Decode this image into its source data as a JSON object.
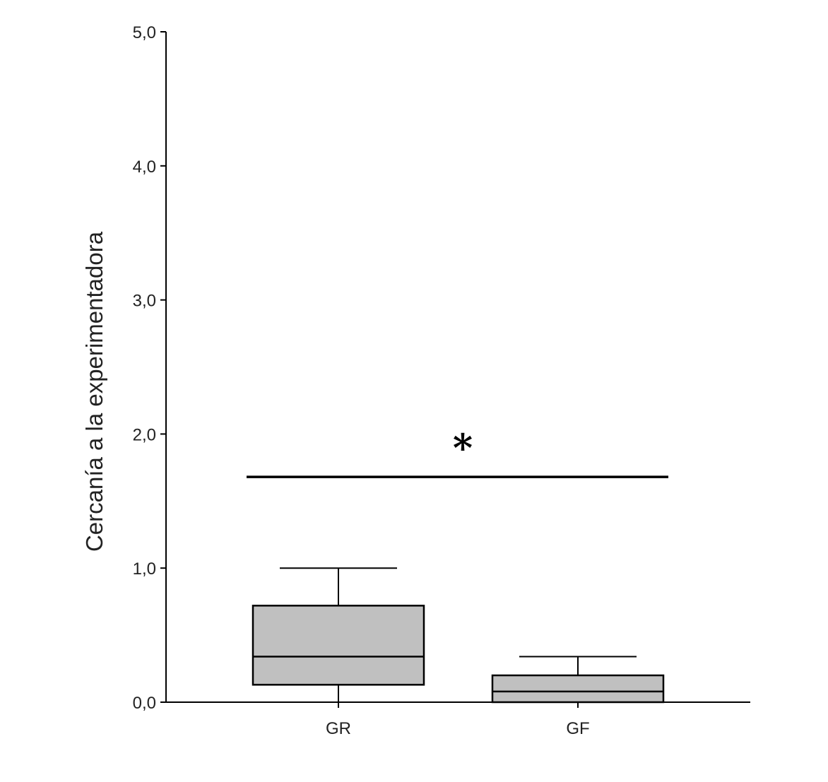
{
  "chart_data": {
    "type": "box",
    "title": "",
    "ylabel": "Cercanía a la experimentadora",
    "xlabel": "",
    "ylim": [
      0,
      5
    ],
    "yticks": [
      {
        "value": 0,
        "label": "0,0"
      },
      {
        "value": 1,
        "label": "1,0"
      },
      {
        "value": 2,
        "label": "2,0"
      },
      {
        "value": 3,
        "label": "3,0"
      },
      {
        "value": 4,
        "label": "4,0"
      },
      {
        "value": 5,
        "label": "5,0"
      }
    ],
    "categories": [
      "GR",
      "GF"
    ],
    "boxes": [
      {
        "category": "GR",
        "whisker_low": 0.0,
        "q1": 0.13,
        "median": 0.34,
        "q3": 0.72,
        "whisker_high": 1.0
      },
      {
        "category": "GF",
        "whisker_low": 0.0,
        "q1": 0.0,
        "median": 0.08,
        "q3": 0.2,
        "whisker_high": 0.34
      }
    ],
    "significance": {
      "label": "*",
      "from": "GR",
      "to": "GF",
      "level": 1.68
    },
    "box_color": "#c0c0c0",
    "axis_color": "#000000",
    "grid": false
  }
}
